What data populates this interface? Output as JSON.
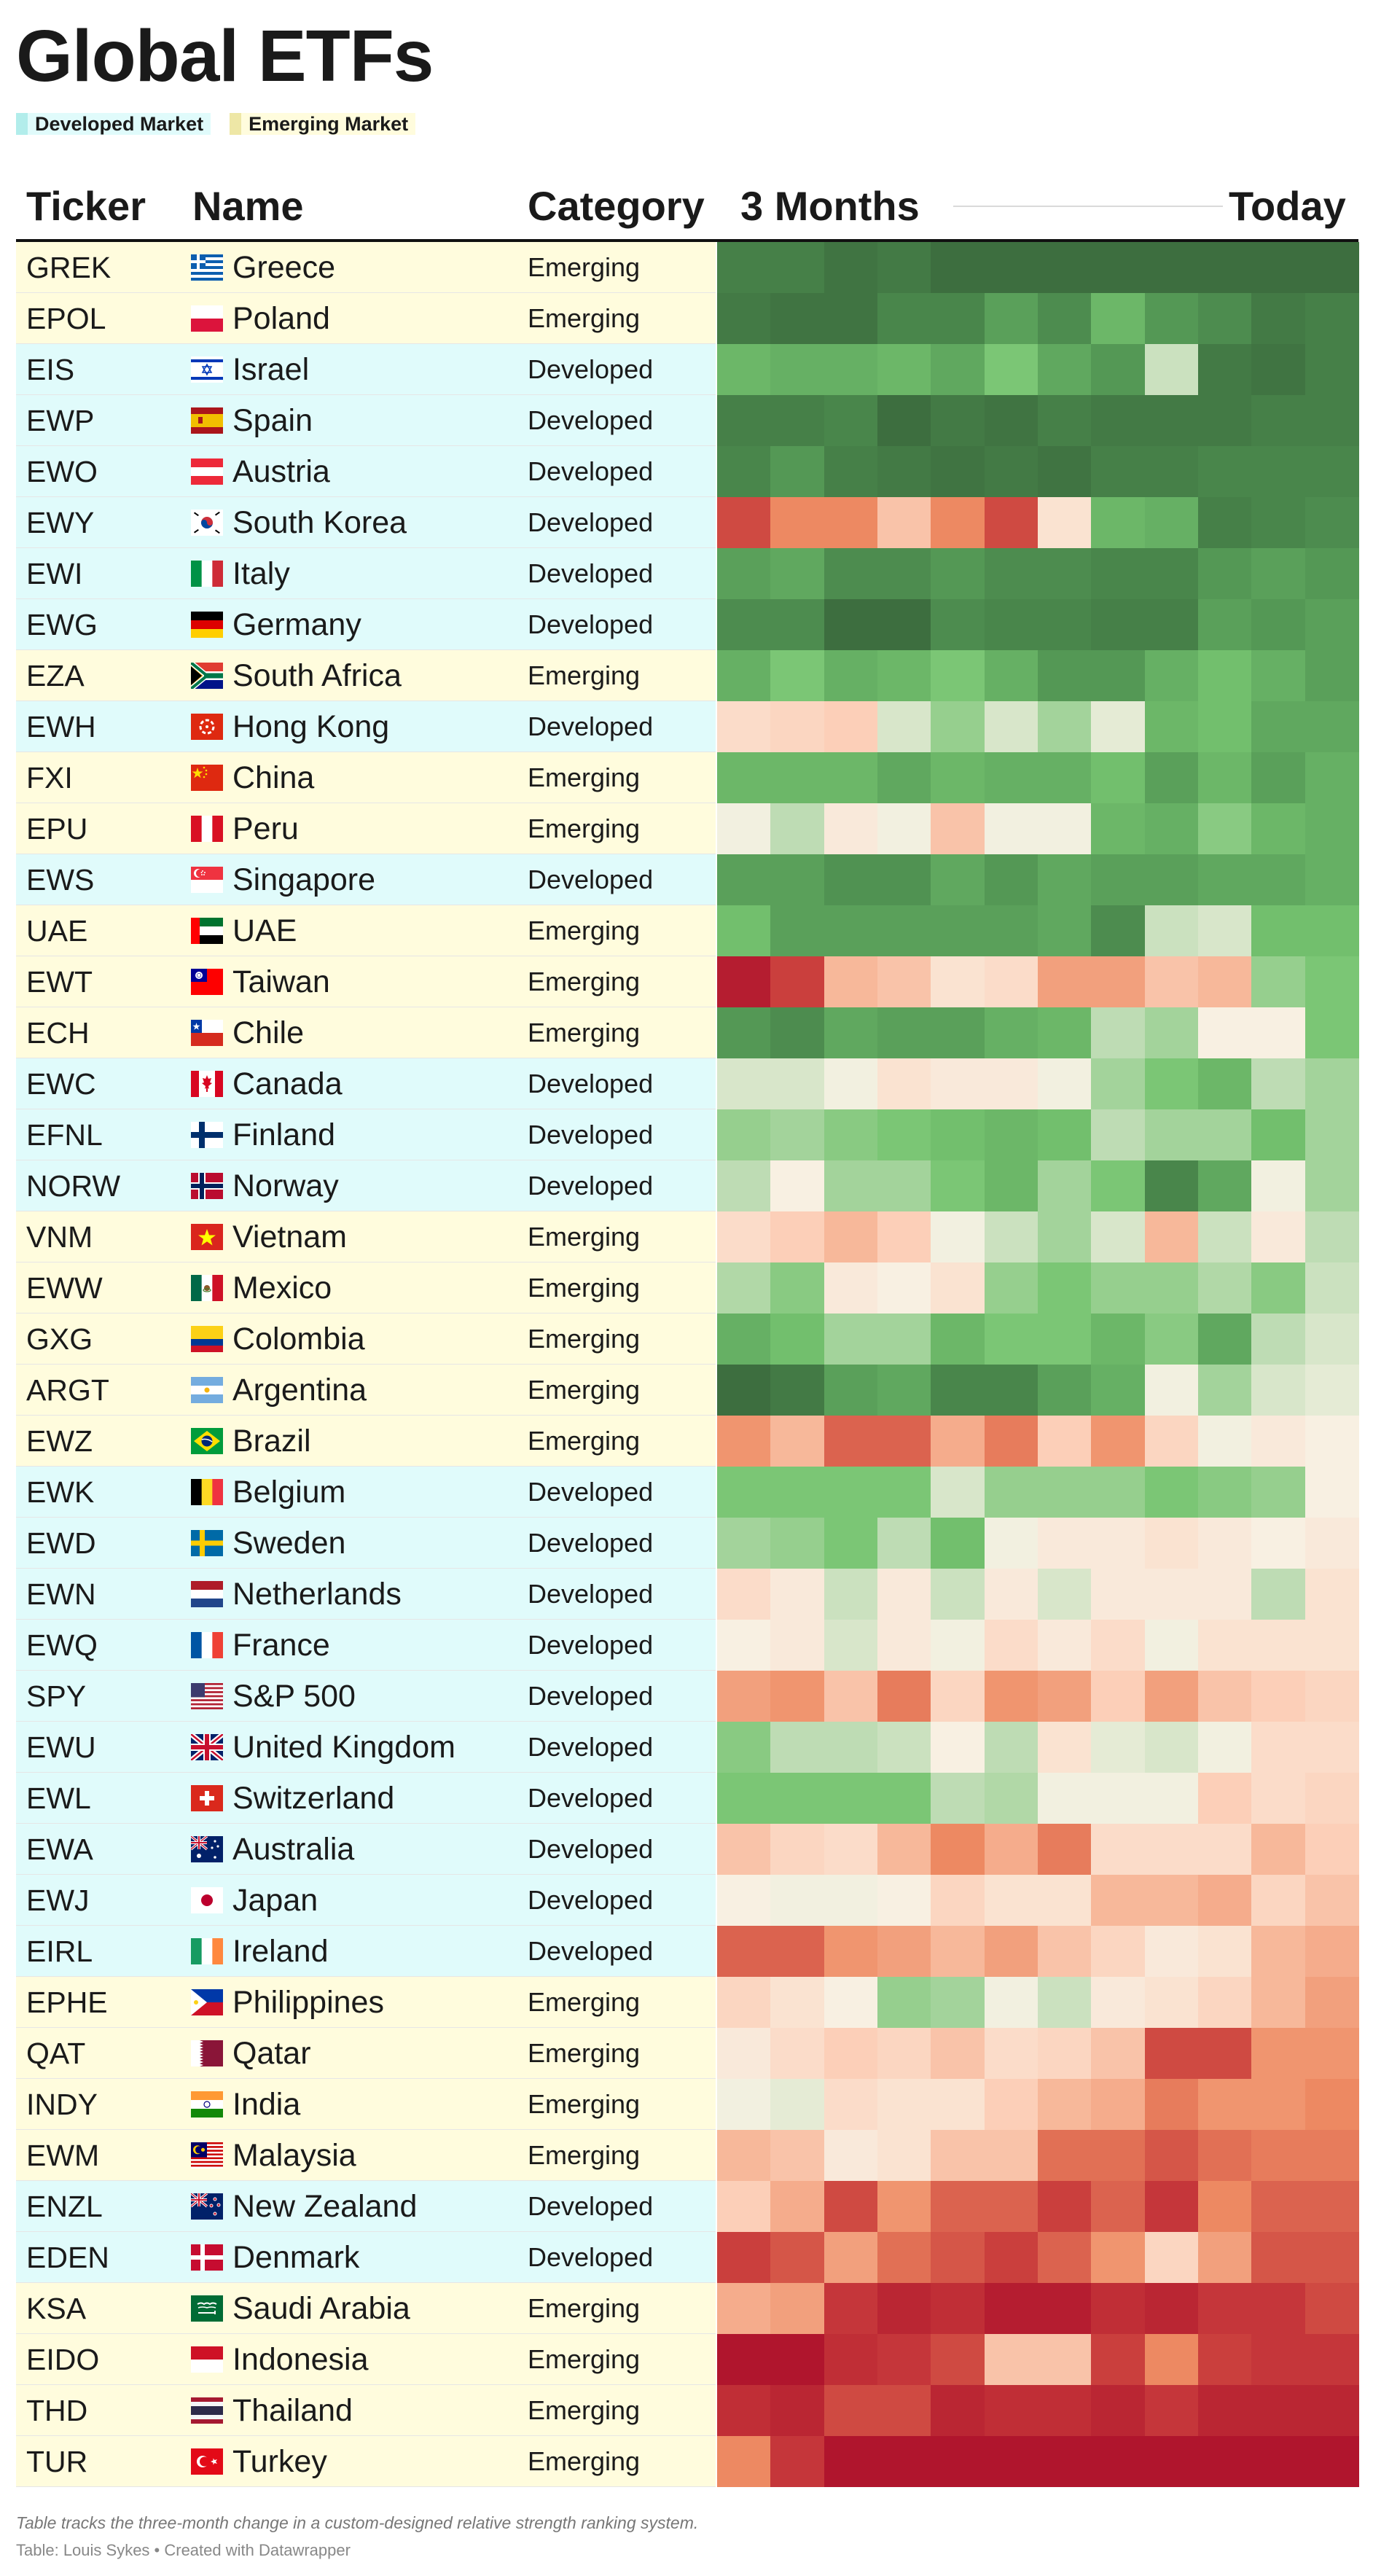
{
  "title": "Global ETFs",
  "legend": [
    {
      "label": "Developed Market",
      "color": "#B2EDEB",
      "bg": "#E0FBFB"
    },
    {
      "label": "Emerging Market",
      "color": "#EEE7A6",
      "bg": "#FFFCDD"
    }
  ],
  "columns": {
    "ticker": "Ticker",
    "name": "Name",
    "category": "Category",
    "start": "3 Months",
    "end": "Today"
  },
  "notes": "Table tracks the three-month change in a custom-designed relative strength ranking system.",
  "source": "Table: Louis Sykes • Created with Datawrapper",
  "colors": {
    "developed_bg": "#E0FBFB",
    "emerging_bg": "#FFFCDD"
  },
  "chart_data": {
    "type": "heatmap",
    "title": "Global ETFs",
    "columns_label_start": "3 Months",
    "columns_label_end": "Today",
    "periods": 12,
    "scale": "relative strength rank (1 = strongest)",
    "color_range": {
      "strongest": "#3D6E3F",
      "mid": "#F8F3E6",
      "weakest": "#B0152D"
    },
    "rows": [
      {
        "ticker": "GREK",
        "name": "Greece",
        "category": "Emerging",
        "flag": "greece",
        "ranks": [
          4,
          4,
          2,
          3,
          1,
          1,
          1,
          1,
          1,
          1,
          1,
          1
        ]
      },
      {
        "ticker": "EPOL",
        "name": "Poland",
        "category": "Emerging",
        "flag": "poland",
        "ranks": [
          3,
          2,
          2,
          5,
          5,
          9,
          6,
          12,
          8,
          6,
          3,
          4
        ]
      },
      {
        "ticker": "EIS",
        "name": "Israel",
        "category": "Developed",
        "flag": "israel",
        "ranks": [
          12,
          11,
          11,
          12,
          10,
          14,
          10,
          8,
          20,
          3,
          2,
          4
        ]
      },
      {
        "ticker": "EWP",
        "name": "Spain",
        "category": "Developed",
        "flag": "spain",
        "ranks": [
          4,
          4,
          5,
          1,
          3,
          2,
          4,
          3,
          3,
          3,
          4,
          4
        ]
      },
      {
        "ticker": "EWO",
        "name": "Austria",
        "category": "Developed",
        "flag": "austria",
        "ranks": [
          5,
          8,
          4,
          3,
          2,
          3,
          2,
          4,
          4,
          5,
          5,
          5
        ]
      },
      {
        "ticker": "EWY",
        "name": "South Korea",
        "category": "Developed",
        "flag": "korea",
        "ranks": [
          40,
          35,
          35,
          30,
          35,
          40,
          26,
          12,
          11,
          4,
          5,
          6
        ]
      },
      {
        "ticker": "EWI",
        "name": "Italy",
        "category": "Developed",
        "flag": "italy",
        "ranks": [
          9,
          10,
          6,
          6,
          8,
          6,
          6,
          5,
          5,
          8,
          9,
          8
        ]
      },
      {
        "ticker": "EWG",
        "name": "Germany",
        "category": "Developed",
        "flag": "germany",
        "ranks": [
          6,
          6,
          1,
          1,
          6,
          5,
          5,
          4,
          4,
          9,
          8,
          9
        ]
      },
      {
        "ticker": "EZA",
        "name": "South Africa",
        "category": "Emerging",
        "flag": "south_africa",
        "ranks": [
          11,
          14,
          11,
          12,
          14,
          11,
          8,
          8,
          11,
          13,
          11,
          9
        ]
      },
      {
        "ticker": "EWH",
        "name": "Hong Kong",
        "category": "Developed",
        "flag": "hongkong",
        "ranks": [
          27,
          28,
          29,
          21,
          16,
          21,
          17,
          22,
          12,
          13,
          10,
          10
        ]
      },
      {
        "ticker": "FXI",
        "name": "China",
        "category": "Emerging",
        "flag": "china",
        "ranks": [
          12,
          12,
          12,
          10,
          12,
          11,
          11,
          13,
          9,
          12,
          9,
          11
        ]
      },
      {
        "ticker": "EPU",
        "name": "Peru",
        "category": "Emerging",
        "flag": "peru",
        "ranks": [
          23,
          19,
          25,
          23,
          30,
          23,
          23,
          12,
          11,
          15,
          12,
          11
        ]
      },
      {
        "ticker": "EWS",
        "name": "Singapore",
        "category": "Developed",
        "flag": "singapore",
        "ranks": [
          9,
          9,
          7,
          7,
          10,
          8,
          10,
          9,
          9,
          10,
          10,
          11
        ]
      },
      {
        "ticker": "UAE",
        "name": "UAE",
        "category": "Emerging",
        "flag": "uae",
        "ranks": [
          13,
          9,
          9,
          9,
          9,
          9,
          10,
          6,
          20,
          21,
          13,
          13
        ]
      },
      {
        "ticker": "EWT",
        "name": "Taiwan",
        "category": "Emerging",
        "flag": "taiwan",
        "ranks": [
          45,
          41,
          31,
          30,
          26,
          27,
          33,
          33,
          30,
          31,
          16,
          14
        ]
      },
      {
        "ticker": "ECH",
        "name": "Chile",
        "category": "Emerging",
        "flag": "chile",
        "ranks": [
          8,
          6,
          10,
          9,
          9,
          11,
          12,
          19,
          17,
          24,
          24,
          14
        ]
      },
      {
        "ticker": "EWC",
        "name": "Canada",
        "category": "Developed",
        "flag": "canada",
        "ranks": [
          21,
          21,
          23,
          26,
          25,
          25,
          23,
          17,
          14,
          12,
          19,
          17
        ]
      },
      {
        "ticker": "EFNL",
        "name": "Finland",
        "category": "Developed",
        "flag": "finland",
        "ranks": [
          16,
          17,
          15,
          14,
          13,
          12,
          13,
          19,
          17,
          17,
          13,
          17
        ]
      },
      {
        "ticker": "NORW",
        "name": "Norway",
        "category": "Developed",
        "flag": "norway",
        "ranks": [
          19,
          24,
          17,
          17,
          14,
          12,
          17,
          14,
          5,
          10,
          23,
          17
        ]
      },
      {
        "ticker": "VNM",
        "name": "Vietnam",
        "category": "Emerging",
        "flag": "vietnam",
        "ranks": [
          27,
          29,
          31,
          29,
          23,
          20,
          17,
          21,
          31,
          20,
          25,
          19
        ]
      },
      {
        "ticker": "EWW",
        "name": "Mexico",
        "category": "Emerging",
        "flag": "mexico",
        "ranks": [
          18,
          15,
          25,
          24,
          26,
          16,
          14,
          16,
          16,
          18,
          15,
          20
        ]
      },
      {
        "ticker": "GXG",
        "name": "Colombia",
        "category": "Emerging",
        "flag": "colombia",
        "ranks": [
          11,
          13,
          17,
          17,
          12,
          14,
          14,
          12,
          15,
          10,
          19,
          21
        ]
      },
      {
        "ticker": "ARGT",
        "name": "Argentina",
        "category": "Emerging",
        "flag": "argentina",
        "ranks": [
          1,
          3,
          9,
          10,
          5,
          5,
          9,
          11,
          23,
          17,
          21,
          22
        ]
      },
      {
        "ticker": "EWZ",
        "name": "Brazil",
        "category": "Emerging",
        "flag": "brazil",
        "ranks": [
          34,
          31,
          38,
          38,
          32,
          36,
          29,
          34,
          28,
          23,
          25,
          24
        ]
      },
      {
        "ticker": "EWK",
        "name": "Belgium",
        "category": "Developed",
        "flag": "belgium",
        "ranks": [
          14,
          14,
          14,
          14,
          21,
          16,
          16,
          16,
          14,
          15,
          16,
          24
        ]
      },
      {
        "ticker": "EWD",
        "name": "Sweden",
        "category": "Developed",
        "flag": "sweden",
        "ranks": [
          17,
          16,
          14,
          19,
          13,
          23,
          25,
          25,
          26,
          25,
          24,
          25
        ]
      },
      {
        "ticker": "EWN",
        "name": "Netherlands",
        "category": "Developed",
        "flag": "netherlands",
        "ranks": [
          27,
          25,
          20,
          25,
          20,
          25,
          21,
          25,
          25,
          25,
          19,
          26
        ]
      },
      {
        "ticker": "EWQ",
        "name": "France",
        "category": "Developed",
        "flag": "france",
        "ranks": [
          24,
          25,
          21,
          25,
          23,
          27,
          25,
          27,
          23,
          26,
          26,
          26
        ]
      },
      {
        "ticker": "SPY",
        "name": "S&P 500",
        "category": "Developed",
        "flag": "usa",
        "ranks": [
          33,
          34,
          30,
          36,
          28,
          34,
          33,
          29,
          33,
          30,
          29,
          28
        ]
      },
      {
        "ticker": "EWU",
        "name": "United Kingdom",
        "category": "Developed",
        "flag": "uk",
        "ranks": [
          15,
          19,
          19,
          20,
          24,
          19,
          26,
          22,
          21,
          23,
          27,
          27
        ]
      },
      {
        "ticker": "EWL",
        "name": "Switzerland",
        "category": "Developed",
        "flag": "switzerland",
        "ranks": [
          14,
          14,
          14,
          14,
          19,
          18,
          23,
          23,
          23,
          29,
          27,
          28
        ]
      },
      {
        "ticker": "EWA",
        "name": "Australia",
        "category": "Developed",
        "flag": "australia",
        "ranks": [
          30,
          28,
          27,
          31,
          35,
          32,
          36,
          27,
          27,
          27,
          31,
          29
        ]
      },
      {
        "ticker": "EWJ",
        "name": "Japan",
        "category": "Developed",
        "flag": "japan",
        "ranks": [
          24,
          23,
          23,
          24,
          28,
          26,
          26,
          31,
          31,
          32,
          28,
          30
        ]
      },
      {
        "ticker": "EIRL",
        "name": "Ireland",
        "category": "Developed",
        "flag": "ireland",
        "ranks": [
          38,
          38,
          34,
          33,
          31,
          33,
          30,
          28,
          25,
          26,
          31,
          32
        ]
      },
      {
        "ticker": "EPHE",
        "name": "Philippines",
        "category": "Emerging",
        "flag": "philippines",
        "ranks": [
          28,
          26,
          24,
          16,
          17,
          23,
          20,
          25,
          26,
          28,
          31,
          33
        ]
      },
      {
        "ticker": "QAT",
        "name": "Qatar",
        "category": "Emerging",
        "flag": "qatar",
        "ranks": [
          25,
          27,
          29,
          28,
          30,
          27,
          28,
          30,
          40,
          40,
          34,
          34
        ]
      },
      {
        "ticker": "INDY",
        "name": "India",
        "category": "Emerging",
        "flag": "india",
        "ranks": [
          23,
          22,
          27,
          26,
          26,
          29,
          31,
          32,
          36,
          34,
          34,
          35
        ]
      },
      {
        "ticker": "EWM",
        "name": "Malaysia",
        "category": "Emerging",
        "flag": "malaysia",
        "ranks": [
          31,
          30,
          25,
          26,
          30,
          30,
          37,
          37,
          39,
          37,
          36,
          36
        ]
      },
      {
        "ticker": "ENZL",
        "name": "New Zealand",
        "category": "Developed",
        "flag": "newzealand",
        "ranks": [
          29,
          32,
          40,
          34,
          38,
          38,
          41,
          38,
          42,
          35,
          38,
          38
        ]
      },
      {
        "ticker": "EDEN",
        "name": "Denmark",
        "category": "Developed",
        "flag": "denmark",
        "ranks": [
          41,
          39,
          33,
          37,
          39,
          41,
          38,
          34,
          28,
          33,
          39,
          39
        ]
      },
      {
        "ticker": "KSA",
        "name": "Saudi Arabia",
        "category": "Emerging",
        "flag": "saudi",
        "ranks": [
          32,
          33,
          42,
          44,
          43,
          45,
          45,
          43,
          44,
          42,
          42,
          40
        ]
      },
      {
        "ticker": "EIDO",
        "name": "Indonesia",
        "category": "Emerging",
        "flag": "indonesia",
        "ranks": [
          46,
          46,
          43,
          42,
          40,
          30,
          30,
          41,
          35,
          41,
          42,
          42
        ]
      },
      {
        "ticker": "THD",
        "name": "Thailand",
        "category": "Emerging",
        "flag": "thailand",
        "ranks": [
          43,
          44,
          40,
          40,
          44,
          43,
          43,
          44,
          42,
          44,
          44,
          44
        ]
      },
      {
        "ticker": "TUR",
        "name": "Turkey",
        "category": "Emerging",
        "flag": "turkey",
        "ranks": [
          35,
          42,
          46,
          46,
          46,
          46,
          46,
          46,
          46,
          46,
          46,
          46
        ]
      }
    ]
  }
}
